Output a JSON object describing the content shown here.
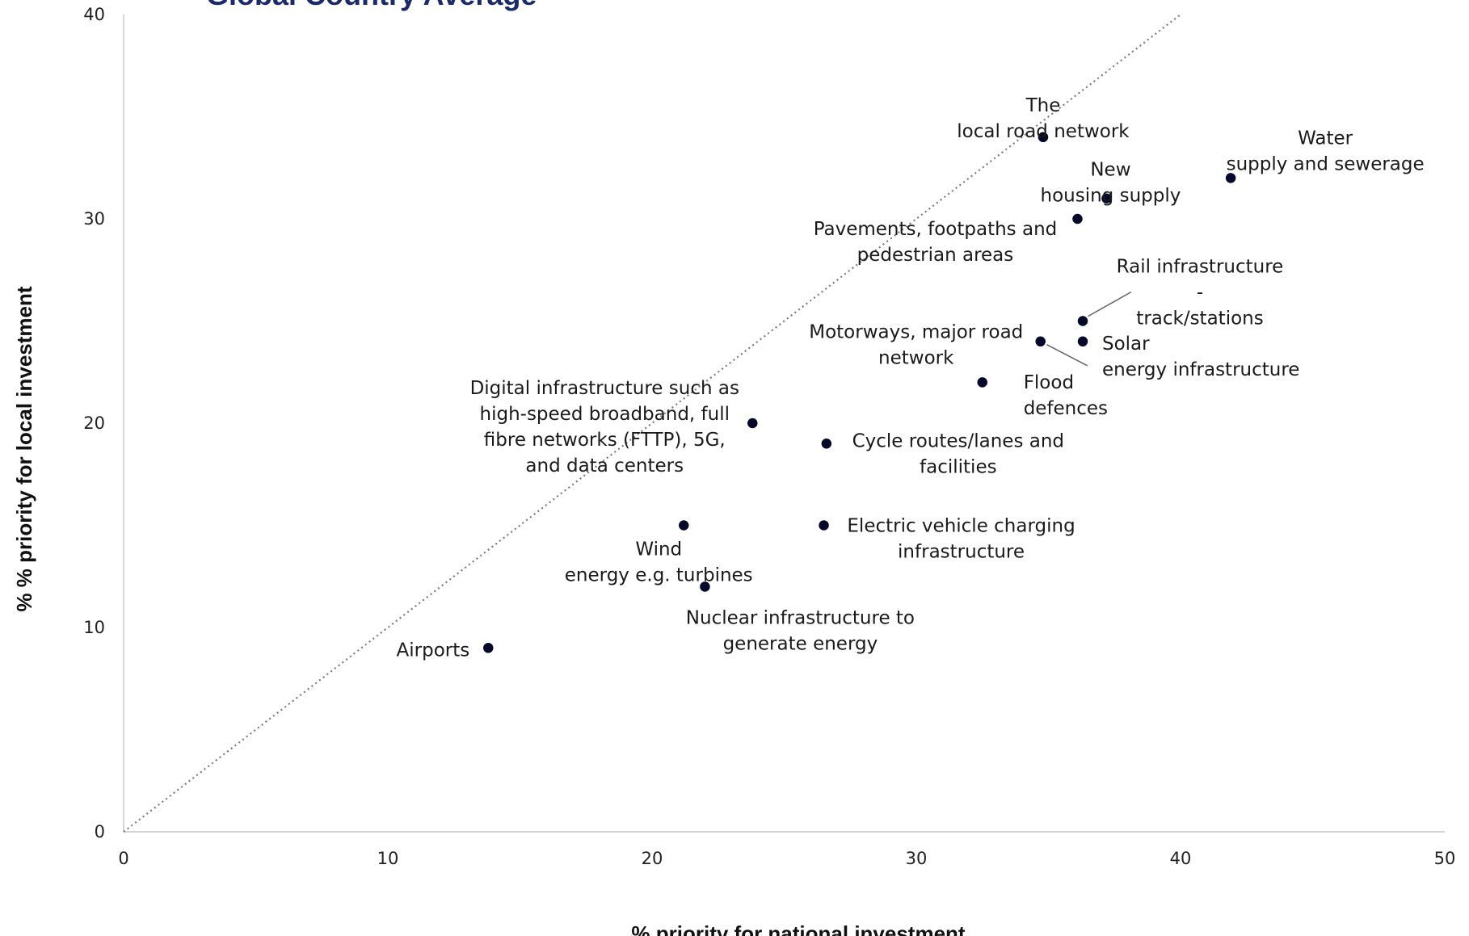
{
  "chart_data": {
    "type": "scatter",
    "title": "Global Country Average",
    "xlabel": "% priority for national investment",
    "ylabel": "% % priority for local investment",
    "xlim": [
      0,
      50
    ],
    "ylim": [
      0,
      40
    ],
    "xticks": [
      0,
      10,
      20,
      30,
      40,
      50
    ],
    "yticks": [
      0,
      10,
      20,
      30,
      40
    ],
    "grid": false,
    "reference_line": "y = x (dotted)",
    "colors": {
      "points": "#06092a",
      "title": "#1b2a6b",
      "reference_line": "#7a7a7a"
    },
    "points": [
      {
        "label": "The local road network",
        "x": 34.8,
        "y": 34
      },
      {
        "label": "Water supply and sewerage",
        "x": 41.9,
        "y": 32
      },
      {
        "label": "New housing supply",
        "x": 37.2,
        "y": 31
      },
      {
        "label": "Pavements, footpaths and pedestrian areas",
        "x": 36.1,
        "y": 30
      },
      {
        "label": "Rail infrastructure - track/stations",
        "x": 36.3,
        "y": 25
      },
      {
        "label": "Solar energy infrastructure",
        "x": 36.3,
        "y": 24
      },
      {
        "label": "Flood defences",
        "x": 34.7,
        "y": 24
      },
      {
        "label": "Motorways, major road network",
        "x": 32.5,
        "y": 22
      },
      {
        "label": "Digital infrastructure such as high-speed broadband, full fibre networks (FTTP), 5G, and data centers",
        "x": 23.8,
        "y": 20
      },
      {
        "label": "Cycle routes/lanes and facilities",
        "x": 26.6,
        "y": 19
      },
      {
        "label": "Wind energy e.g. turbines",
        "x": 21.2,
        "y": 15
      },
      {
        "label": "Electric vehicle charging infrastructure",
        "x": 26.5,
        "y": 15
      },
      {
        "label": "Nuclear infrastructure to generate energy",
        "x": 22.0,
        "y": 12
      },
      {
        "label": "Airports",
        "x": 13.8,
        "y": 9
      }
    ]
  }
}
